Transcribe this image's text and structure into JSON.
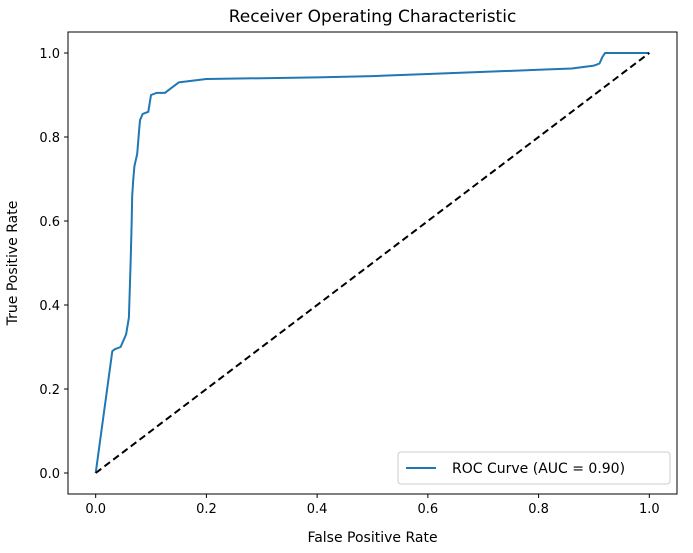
{
  "chart_data": {
    "type": "line",
    "title": "Receiver Operating Characteristic",
    "xlabel": "False Positive Rate",
    "ylabel": "True Positive Rate",
    "xlim": [
      -0.05,
      1.05
    ],
    "ylim": [
      -0.05,
      1.05
    ],
    "xticks": [
      0.0,
      0.2,
      0.4,
      0.6,
      0.8,
      1.0
    ],
    "yticks": [
      0.0,
      0.2,
      0.4,
      0.6,
      0.8,
      1.0
    ],
    "xtick_labels": [
      "0.0",
      "0.2",
      "0.4",
      "0.6",
      "0.8",
      "1.0"
    ],
    "ytick_labels": [
      "0.0",
      "0.2",
      "0.4",
      "0.6",
      "0.8",
      "1.0"
    ],
    "grid": false,
    "legend_position": "lower-right",
    "series": [
      {
        "name": "ROC Curve (AUC = 0.90)",
        "color": "#1f77b4",
        "style": "solid",
        "x": [
          0.0,
          0.03,
          0.035,
          0.045,
          0.055,
          0.06,
          0.063,
          0.065,
          0.066,
          0.068,
          0.07,
          0.075,
          0.078,
          0.08,
          0.085,
          0.095,
          0.1,
          0.11,
          0.125,
          0.135,
          0.15,
          0.2,
          0.3,
          0.4,
          0.5,
          0.6,
          0.7,
          0.8,
          0.86,
          0.9,
          0.91,
          0.915,
          0.92,
          1.0
        ],
        "y": [
          0.0,
          0.29,
          0.295,
          0.3,
          0.33,
          0.37,
          0.5,
          0.6,
          0.66,
          0.7,
          0.73,
          0.76,
          0.81,
          0.84,
          0.855,
          0.86,
          0.9,
          0.905,
          0.905,
          0.915,
          0.93,
          0.938,
          0.94,
          0.942,
          0.945,
          0.95,
          0.955,
          0.96,
          0.963,
          0.97,
          0.975,
          0.99,
          1.0,
          1.0
        ]
      },
      {
        "name": "",
        "color": "#000000",
        "style": "dashed",
        "x": [
          0.0,
          1.0
        ],
        "y": [
          0.0,
          1.0
        ]
      }
    ]
  }
}
